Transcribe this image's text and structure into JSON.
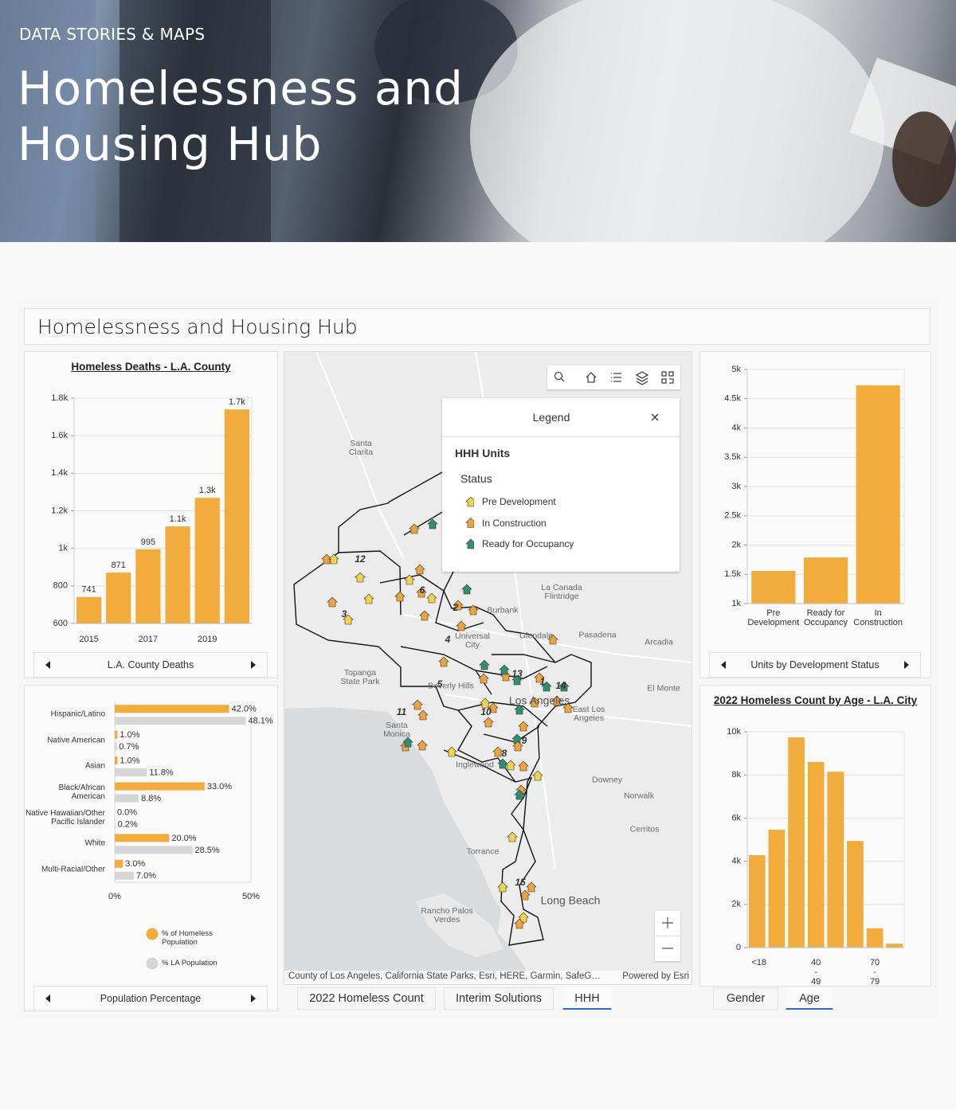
{
  "header": {
    "eyebrow": "DATA STORIES & MAPS",
    "title": "Homelessness and Housing Hub"
  },
  "dashboard": {
    "title": "Homelessness and Housing Hub"
  },
  "chart_data": [
    {
      "type": "bar",
      "title": "Homeless Deaths - L.A. County",
      "footer": "L.A. County Deaths",
      "categories": [
        "2015",
        null,
        "2017",
        null,
        "2019",
        null
      ],
      "values": [
        741,
        871,
        995,
        1117,
        1269,
        1740
      ],
      "value_labels": [
        "741",
        "871",
        "995",
        "1.1k",
        "1.3k",
        "1.7k"
      ],
      "color": "#f2ac3c",
      "ylim": [
        600,
        1800
      ],
      "yticks": [
        600,
        800,
        {
          "value": 1000,
          "label": "1k"
        },
        {
          "value": 1200,
          "label": "1.2k"
        },
        {
          "value": 1400,
          "label": "1.4k"
        },
        {
          "value": 1600,
          "label": "1.6k"
        },
        {
          "value": 1800,
          "label": "1.8k"
        }
      ],
      "grid": true
    },
    {
      "type": "hbar",
      "footer": "Population Percentage",
      "categories": [
        "Hispanic/Latino",
        "Native American",
        "Asian",
        "Black/African American",
        "Native Hawaiian/Other Pacific Islander",
        "White",
        "Multi-Racial/Other"
      ],
      "series": [
        {
          "name": "% of Homeless Population",
          "color": "#f2ac3c",
          "values": [
            42.0,
            1.0,
            1.0,
            33.0,
            0.0,
            20.0,
            3.0
          ],
          "value_labels": [
            "42.0%",
            "1.0%",
            "1.0%",
            "33.0%",
            "0.0%",
            "20.0%",
            "3.0%"
          ]
        },
        {
          "name": "% LA Population",
          "color": "#d6d6d6",
          "values": [
            48.1,
            0.7,
            11.8,
            8.8,
            0.2,
            28.5,
            7.0
          ],
          "value_labels": [
            "48.1%",
            "0.7%",
            "11.8%",
            "8.8%",
            "0.2%",
            "28.5%",
            "7.0%"
          ]
        }
      ],
      "xlim": [
        0,
        50
      ],
      "xticks": [
        {
          "value": 0,
          "label": "0%"
        },
        {
          "value": 50,
          "label": "50%"
        }
      ],
      "grid": true
    },
    {
      "type": "bar",
      "footer": "Units by Development Status",
      "categories": [
        "Pre Development",
        "Ready for Occupancy",
        "In Construction"
      ],
      "values": [
        1558,
        1789,
        4728
      ],
      "color": "#f2ac3c",
      "ylim": [
        1000,
        5000
      ],
      "yticks": [
        {
          "value": 1000,
          "label": "1k"
        },
        {
          "value": 1500,
          "label": "1.5k"
        },
        {
          "value": 2000,
          "label": "2k"
        },
        {
          "value": 2500,
          "label": "2.5k"
        },
        {
          "value": 3000,
          "label": "3k"
        },
        {
          "value": 3500,
          "label": "3.5k"
        },
        {
          "value": 4000,
          "label": "4k"
        },
        {
          "value": 4500,
          "label": "4.5k"
        },
        {
          "value": 5000,
          "label": "5k"
        }
      ],
      "grid": true
    },
    {
      "type": "bar",
      "title": "2022 Homeless Count by Age - L.A. City",
      "categories": [
        "<18",
        null,
        null,
        "40 - 49",
        null,
        null,
        "70 - 79",
        null
      ],
      "values": [
        4280,
        5460,
        9740,
        8600,
        8150,
        4940,
        890,
        180
      ],
      "color": "#f2ac3c",
      "ylim": [
        0,
        10000
      ],
      "yticks": [
        0,
        {
          "value": 2000,
          "label": "2k"
        },
        {
          "value": 4000,
          "label": "4k"
        },
        {
          "value": 6000,
          "label": "6k"
        },
        {
          "value": 8000,
          "label": "8k"
        },
        {
          "value": 10000,
          "label": "10k"
        }
      ],
      "grid": true
    }
  ],
  "map": {
    "places": [
      "Santa Clarita",
      "La Canada Flintridge",
      "Burbank",
      "Glendale",
      "Pasadena",
      "Arcadia",
      "El Monte",
      "East Los Angeles",
      "Los Angeles",
      "Beverly Hills",
      "Santa Monica",
      "Inglewood",
      "Downey",
      "Norwalk",
      "Cerritos",
      "Torrance",
      "Rancho Palos Verdes",
      "Long Beach",
      "Topanga State Park",
      "Universal City"
    ],
    "districts": [
      "12",
      "6",
      "2",
      "3",
      "4",
      "5",
      "11",
      "10",
      "13",
      "1",
      "14",
      "9",
      "8",
      "15"
    ],
    "legend": {
      "title": "Legend",
      "layer": "HHH Units",
      "field": "Status",
      "items": [
        {
          "label": "Pre Development",
          "color": "#f3d34a"
        },
        {
          "label": "In Construction",
          "color": "#f0a33a"
        },
        {
          "label": "Ready for Occupancy",
          "color": "#2f8f70"
        }
      ]
    },
    "attribution": "County of Los Angeles, California State Parks, Esri, HERE, Garmin, SafeG…",
    "powered": "Powered by Esri"
  },
  "tabs": {
    "map": [
      "2022 Homeless Count",
      "Interim Solutions",
      "HHH"
    ],
    "map_active": 2,
    "age": [
      "Gender",
      "Age"
    ],
    "age_active": 1
  }
}
